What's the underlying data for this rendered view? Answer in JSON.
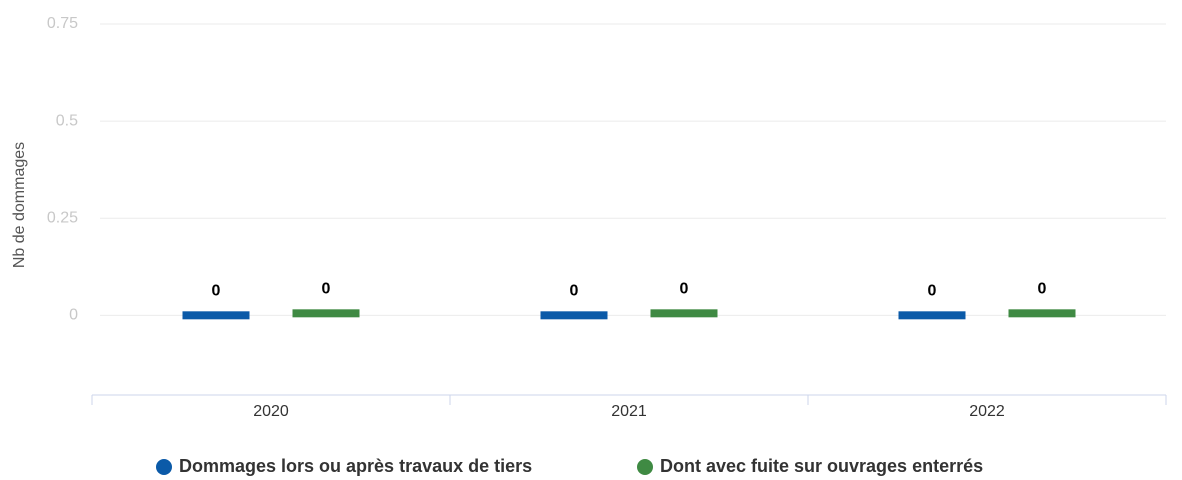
{
  "chart_data": {
    "type": "bar",
    "y_axis_label": "Nb de dommages",
    "categories": [
      "2020",
      "2021",
      "2022"
    ],
    "series": [
      {
        "name": "Dommages lors ou après travaux de tiers",
        "color": "#0b5aa8",
        "values": [
          0,
          0,
          0
        ]
      },
      {
        "name": "Dont avec fuite sur ouvrages enterrés",
        "color": "#3f8a43",
        "values": [
          0,
          0,
          0
        ]
      }
    ],
    "ylim": [
      -0.2,
      0.75
    ],
    "yticks": [
      0,
      0.25,
      0.5,
      0.75
    ],
    "grid": true,
    "legend": "bottom"
  }
}
